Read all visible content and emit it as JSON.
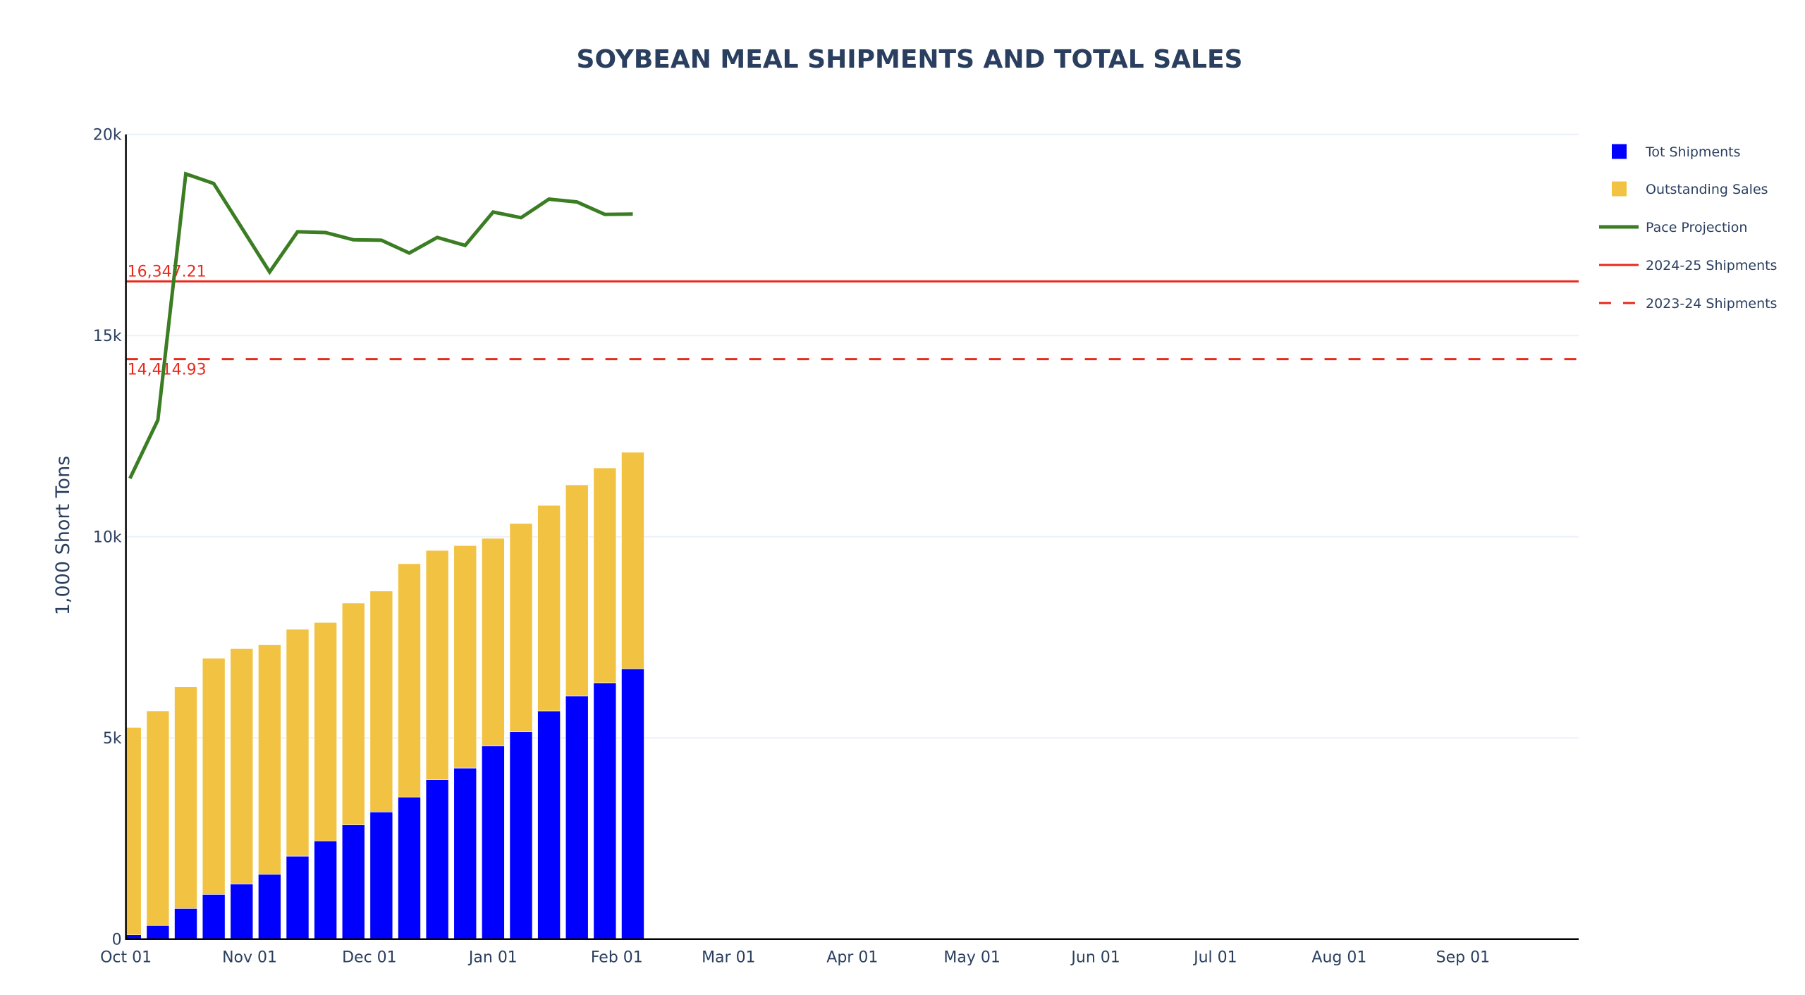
{
  "chart_data": {
    "type": "bar",
    "title": "SOYBEAN MEAL SHIPMENTS AND TOTAL SALES",
    "xlabel": "",
    "ylabel": "1,000 Short Tons",
    "xrange": [
      "2024-10-01",
      "2025-09-30"
    ],
    "ylim": [
      0,
      20000
    ],
    "grid": true,
    "barmode": "stack",
    "legend_position": "top-right (outside plot)",
    "x_ticks": [
      "Oct 01",
      "Nov 01",
      "Dec 01",
      "Jan 01",
      "Feb 01",
      "Mar 01",
      "Apr 01",
      "May 01",
      "Jun 01",
      "Jul 01",
      "Aug 01",
      "Sep 01"
    ],
    "x_tick_dates": [
      "2024-10-01",
      "2024-11-01",
      "2024-12-01",
      "2025-01-01",
      "2025-02-01",
      "2025-03-01",
      "2025-04-01",
      "2025-05-01",
      "2025-06-01",
      "2025-07-01",
      "2025-08-01",
      "2025-09-01"
    ],
    "y_ticks": [
      0,
      5000,
      10000,
      15000,
      20000
    ],
    "y_tick_labels": [
      "0",
      "5k",
      "10k",
      "15k",
      "20k"
    ],
    "x": [
      "2024-10-02",
      "2024-10-09",
      "2024-10-16",
      "2024-10-23",
      "2024-10-30",
      "2024-11-06",
      "2024-11-13",
      "2024-11-20",
      "2024-11-27",
      "2024-12-04",
      "2024-12-11",
      "2024-12-18",
      "2024-12-25",
      "2025-01-01",
      "2025-01-08",
      "2025-01-15",
      "2025-01-22",
      "2025-01-29",
      "2025-02-05"
    ],
    "series": [
      {
        "name": "Tot Shipments",
        "kind": "bar",
        "color": "#0000ff",
        "values": [
          105,
          340,
          760,
          1110,
          1370,
          1610,
          2060,
          2440,
          2840,
          3160,
          3530,
          3960,
          4250,
          4800,
          5150,
          5670,
          6040,
          6370,
          6720
        ]
      },
      {
        "name": "Outstanding Sales",
        "kind": "bar",
        "color": "#f2c343",
        "values": [
          5155,
          5330,
          5510,
          5870,
          5850,
          5710,
          5640,
          5430,
          5510,
          5490,
          5800,
          5700,
          5530,
          5160,
          5180,
          5110,
          5250,
          5340,
          5380
        ]
      },
      {
        "name": "Pace Projection",
        "kind": "line",
        "color": "#3a7d22",
        "values": [
          11450,
          12900,
          19020,
          18780,
          17680,
          16580,
          17580,
          17560,
          17380,
          17370,
          17050,
          17440,
          17240,
          18070,
          17930,
          18390,
          18320,
          18010,
          18020
        ]
      },
      {
        "name": "2024-25 Shipments",
        "kind": "hline",
        "color": "#e8291c",
        "dash": "solid",
        "value": 16347.21,
        "label": "16,347.21"
      },
      {
        "name": "2023-24 Shipments",
        "kind": "hline",
        "color": "#e8291c",
        "dash": "dash",
        "value": 14414.93,
        "label": "14,414.93"
      }
    ]
  }
}
